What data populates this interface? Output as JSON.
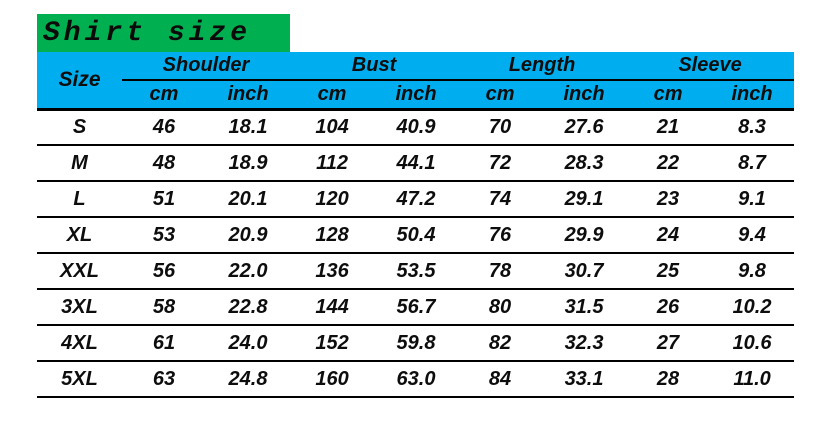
{
  "title": {
    "text": "Shirt size"
  },
  "colors": {
    "banner_green": "#00B050",
    "header_blue": "#00AEEF",
    "text_dark": "#0d0d0d",
    "rule_black": "#000000"
  },
  "table": {
    "corner_label": "Size",
    "groups": [
      {
        "label": "Shoulder",
        "sub": [
          "cm",
          "inch"
        ]
      },
      {
        "label": "Bust",
        "sub": [
          "cm",
          "inch"
        ]
      },
      {
        "label": "Length",
        "sub": [
          "cm",
          "inch"
        ]
      },
      {
        "label": "Sleeve",
        "sub": [
          "cm",
          "inch"
        ]
      }
    ],
    "rows": [
      {
        "size": "S",
        "values": [
          "46",
          "18.1",
          "104",
          "40.9",
          "70",
          "27.6",
          "21",
          "8.3"
        ]
      },
      {
        "size": "M",
        "values": [
          "48",
          "18.9",
          "112",
          "44.1",
          "72",
          "28.3",
          "22",
          "8.7"
        ]
      },
      {
        "size": "L",
        "values": [
          "51",
          "20.1",
          "120",
          "47.2",
          "74",
          "29.1",
          "23",
          "9.1"
        ]
      },
      {
        "size": "XL",
        "values": [
          "53",
          "20.9",
          "128",
          "50.4",
          "76",
          "29.9",
          "24",
          "9.4"
        ]
      },
      {
        "size": "XXL",
        "values": [
          "56",
          "22.0",
          "136",
          "53.5",
          "78",
          "30.7",
          "25",
          "9.8"
        ]
      },
      {
        "size": "3XL",
        "values": [
          "58",
          "22.8",
          "144",
          "56.7",
          "80",
          "31.5",
          "26",
          "10.2"
        ]
      },
      {
        "size": "4XL",
        "values": [
          "61",
          "24.0",
          "152",
          "59.8",
          "82",
          "32.3",
          "27",
          "10.6"
        ]
      },
      {
        "size": "5XL",
        "values": [
          "63",
          "24.8",
          "160",
          "63.0",
          "84",
          "33.1",
          "28",
          "11.0"
        ]
      }
    ]
  },
  "chart_data": {
    "type": "table",
    "title": "Shirt size",
    "columns": [
      "Size",
      "Shoulder cm",
      "Shoulder inch",
      "Bust cm",
      "Bust inch",
      "Length cm",
      "Length inch",
      "Sleeve cm",
      "Sleeve inch"
    ],
    "rows": [
      [
        "S",
        46,
        18.1,
        104,
        40.9,
        70,
        27.6,
        21,
        8.3
      ],
      [
        "M",
        48,
        18.9,
        112,
        44.1,
        72,
        28.3,
        22,
        8.7
      ],
      [
        "L",
        51,
        20.1,
        120,
        47.2,
        74,
        29.1,
        23,
        9.1
      ],
      [
        "XL",
        53,
        20.9,
        128,
        50.4,
        76,
        29.9,
        24,
        9.4
      ],
      [
        "XXL",
        56,
        22.0,
        136,
        53.5,
        78,
        30.7,
        25,
        9.8
      ],
      [
        "3XL",
        58,
        22.8,
        144,
        56.7,
        80,
        31.5,
        26,
        10.2
      ],
      [
        "4XL",
        61,
        24.0,
        152,
        59.8,
        82,
        32.3,
        27,
        10.6
      ],
      [
        "5XL",
        63,
        24.8,
        160,
        63.0,
        84,
        33.1,
        28,
        11.0
      ]
    ],
    "layout": {
      "header_rows": 2,
      "grid": "horizontal-rules-only",
      "header_bg": "#00AEEF",
      "title_bg": "#00B050"
    }
  }
}
